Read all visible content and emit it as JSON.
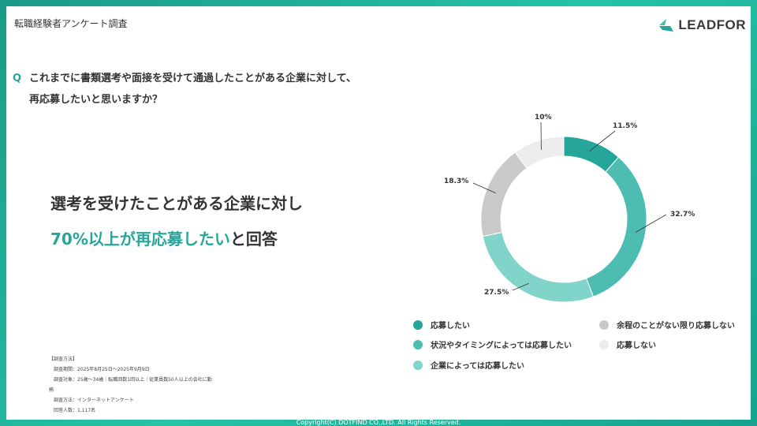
{
  "header": {
    "title": "転職経験者アンケート調査",
    "logo": "LEADFOR"
  },
  "question": {
    "mark": "Q",
    "line1": "これまでに書類選考や面接を受けて通過したことがある企業に対して、",
    "line2": "再応募したいと思いますか？"
  },
  "headline": {
    "line1": "選考を受けたことがある企業に対し",
    "highlight": "70%以上が再応募したい",
    "suffix": "と回答"
  },
  "method": {
    "title": "【調査方法】",
    "period": "調査期間：2025年8月25日～2025年9月9日",
    "target": "調査対象：25歳～34歳｜転職回数1回以上｜従業員数50人以上の会社に勤",
    "target2": "務",
    "way": "調査方法：インターネットアンケート",
    "count": "回答人数：1,117名"
  },
  "chart_data": {
    "type": "pie",
    "donut": true,
    "series": [
      {
        "name": "応募したい",
        "value": 11.5,
        "label": "11.5%",
        "color": "#26a69a"
      },
      {
        "name": "状況やタイミングによっては応募したい",
        "value": 32.7,
        "label": "32.7%",
        "color": "#4dbdb2"
      },
      {
        "name": "企業によっては応募したい",
        "value": 27.5,
        "label": "27.5%",
        "color": "#80d4c9"
      },
      {
        "name": "余程のことがない限り応募しない",
        "value": 18.3,
        "label": "18.3%",
        "color": "#c9c9c9"
      },
      {
        "name": "応募しない",
        "value": 10,
        "label": "10%",
        "color": "#ececec"
      }
    ]
  },
  "footer": {
    "copyright": "Copyright(C) DOTFIND CO.,LTD. All Rights Reserved."
  }
}
